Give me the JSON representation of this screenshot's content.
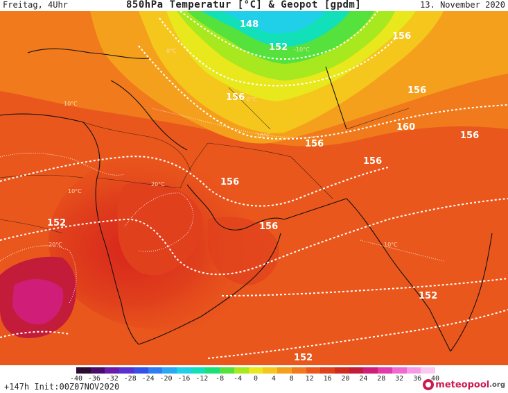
{
  "header": {
    "left": "Freitag, 4Uhr",
    "title": "850hPa Temperatur [°C] & Geopot [gpdm]",
    "right": "13. November 2020"
  },
  "map": {
    "geopotential_labels": [
      "148",
      "152",
      "156",
      "156",
      "156",
      "156",
      "156",
      "156",
      "156",
      "160",
      "156",
      "152",
      "152",
      "152"
    ],
    "temperature_labels": [
      "-10°C",
      "0°C",
      "10°C",
      "20°C",
      "20°C",
      "10°C",
      "10°C",
      "10°C",
      "0°C"
    ]
  },
  "colorbar": {
    "colors": [
      "#2b0b2e",
      "#4a0c6b",
      "#6a1ba8",
      "#5a2fd0",
      "#3550e6",
      "#2f7df0",
      "#2aa8f2",
      "#1fd0e8",
      "#12e0b8",
      "#1be07a",
      "#55e23c",
      "#a8e81e",
      "#e8e81c",
      "#f5c61c",
      "#f5a01c",
      "#f07a1c",
      "#ea571c",
      "#e0401c",
      "#cf2a1c",
      "#c21c3a",
      "#d01e78",
      "#e23aa8",
      "#ef6ad0",
      "#f79ae6",
      "#fbc8f2"
    ],
    "ticks": [
      "-40",
      "-36",
      "-32",
      "-28",
      "-24",
      "-20",
      "-16",
      "-12",
      "-8",
      "-4",
      "0",
      "4",
      "8",
      "12",
      "16",
      "20",
      "24",
      "28",
      "32",
      "36",
      "40"
    ]
  },
  "footer": {
    "run_info": "+147h Init:00Z07NOV2020",
    "brand": "meteopool",
    "brand_tld": ".org"
  }
}
